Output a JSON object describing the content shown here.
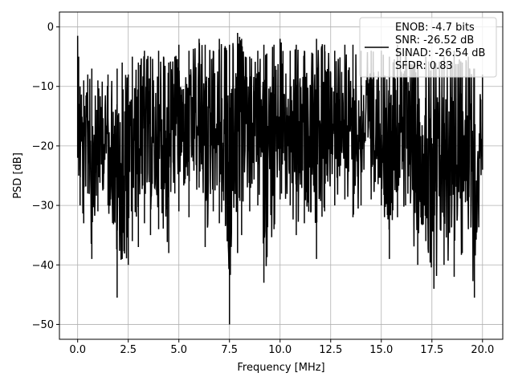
{
  "chart_data": {
    "type": "line",
    "xlabel": "Frequency [MHz]",
    "ylabel": "PSD [dB]",
    "xlim": [
      -0.9,
      21.0
    ],
    "ylim": [
      -52.5,
      2.5
    ],
    "xticks": [
      0.0,
      2.5,
      5.0,
      7.5,
      10.0,
      12.5,
      15.0,
      17.5,
      20.0
    ],
    "xtick_labels": [
      "0.0",
      "2.5",
      "5.0",
      "7.5",
      "10.0",
      "12.5",
      "15.0",
      "17.5",
      "20.0"
    ],
    "yticks": [
      0,
      -10,
      -20,
      -30,
      -40,
      -50
    ],
    "ytick_labels": [
      "0",
      "−10",
      "−20",
      "−30",
      "−40",
      "−50"
    ],
    "grid": true,
    "legend_position": "top-right",
    "legend_lines": [
      "ENOB: -4.7 bits",
      "SNR: -26.52 dB",
      "SINAD: -26.54 dB",
      "SFDR: 0.83"
    ],
    "series_color": "#000000",
    "series": [
      {
        "x": [
          0.0,
          0.05,
          0.12,
          0.3,
          0.5,
          0.7,
          1.0,
          1.5,
          1.95,
          2.2,
          2.5,
          2.7,
          3.0,
          3.3,
          3.6,
          4.0,
          4.5,
          4.8,
          5.0,
          5.5,
          6.0,
          6.3,
          6.7,
          7.0,
          7.5,
          7.9,
          8.1,
          8.5,
          8.9,
          9.2,
          9.7,
          10.0,
          10.5,
          10.8,
          11.2,
          11.8,
          12.2,
          12.7,
          13.2,
          13.6,
          14.0,
          14.5,
          15.0,
          15.4,
          15.8,
          16.2,
          16.8,
          17.2,
          17.6,
          18.1,
          18.6,
          19.0,
          19.3,
          19.6,
          20.0
        ],
        "envelope_max": [
          -1.5,
          -5,
          -10,
          -9,
          -8,
          -7,
          -9,
          -8,
          -7,
          -6,
          -8,
          -5,
          -6,
          -4,
          -5,
          -4,
          -6,
          -5,
          -3,
          -4,
          -2,
          -3,
          -4,
          -2,
          -3,
          -1,
          -2,
          -5,
          -4,
          -3,
          -3,
          -2,
          -4,
          -3,
          -4,
          -2,
          -3,
          -4,
          -3,
          -3,
          -4,
          -4,
          -4,
          -5,
          -3,
          -4,
          -6,
          -5,
          -6,
          -5,
          -4,
          -6,
          -5,
          -7,
          -8
        ],
        "envelope_min": [
          -22,
          -25,
          -30,
          -33,
          -28,
          -39,
          -31,
          -30,
          -45.5,
          -39,
          -40,
          -36,
          -37,
          -33,
          -35,
          -34,
          -38,
          -28,
          -31,
          -32,
          -27,
          -37,
          -31,
          -33,
          -50,
          -38,
          -35,
          -31,
          -30,
          -43,
          -34,
          -29,
          -30,
          -35,
          -33,
          -39,
          -31,
          -30,
          -29,
          -32,
          -30,
          -29,
          -30,
          -39,
          -32,
          -30,
          -40,
          -36,
          -44,
          -40,
          -42,
          -38,
          -34,
          -45.5,
          -24
        ]
      }
    ]
  }
}
